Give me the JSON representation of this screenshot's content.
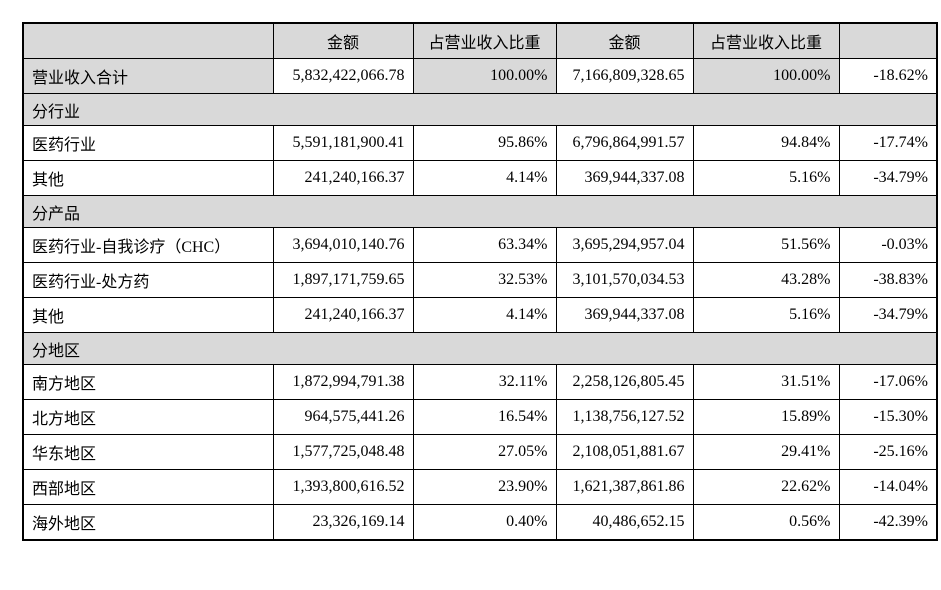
{
  "colors": {
    "shaded_bg": "#d9d9d9",
    "row_bg": "#ffffff",
    "border": "#000000",
    "text": "#000000"
  },
  "table": {
    "columns": [
      {
        "label": ""
      },
      {
        "label": "金额"
      },
      {
        "label": "占营业收入比重"
      },
      {
        "label": "金额"
      },
      {
        "label": "占营业收入比重"
      },
      {
        "label": ""
      }
    ],
    "rows": [
      {
        "kind": "data",
        "shaded": [
          1,
          0,
          1,
          0,
          1,
          0
        ],
        "cells": [
          "营业收入合计",
          "5,832,422,066.78",
          "100.00%",
          "7,166,809,328.65",
          "100.00%",
          "-18.62%"
        ]
      },
      {
        "kind": "section",
        "shaded": [
          1
        ],
        "cells": [
          "分行业"
        ]
      },
      {
        "kind": "data",
        "shaded": [
          0,
          0,
          0,
          0,
          0,
          0
        ],
        "cells": [
          "医药行业",
          "5,591,181,900.41",
          "95.86%",
          "6,796,864,991.57",
          "94.84%",
          "-17.74%"
        ]
      },
      {
        "kind": "data",
        "shaded": [
          0,
          0,
          0,
          0,
          0,
          0
        ],
        "cells": [
          "其他",
          "241,240,166.37",
          "4.14%",
          "369,944,337.08",
          "5.16%",
          "-34.79%"
        ]
      },
      {
        "kind": "section",
        "shaded": [
          1
        ],
        "cells": [
          "分产品"
        ]
      },
      {
        "kind": "data",
        "shaded": [
          0,
          0,
          0,
          0,
          0,
          0
        ],
        "cells": [
          "医药行业-自我诊疗（CHC）",
          "3,694,010,140.76",
          "63.34%",
          "3,695,294,957.04",
          "51.56%",
          "-0.03%"
        ]
      },
      {
        "kind": "data",
        "shaded": [
          0,
          0,
          0,
          0,
          0,
          0
        ],
        "cells": [
          "医药行业-处方药",
          "1,897,171,759.65",
          "32.53%",
          "3,101,570,034.53",
          "43.28%",
          "-38.83%"
        ]
      },
      {
        "kind": "data",
        "shaded": [
          0,
          0,
          0,
          0,
          0,
          0
        ],
        "cells": [
          "其他",
          "241,240,166.37",
          "4.14%",
          "369,944,337.08",
          "5.16%",
          "-34.79%"
        ]
      },
      {
        "kind": "section",
        "shaded": [
          1
        ],
        "cells": [
          "分地区"
        ]
      },
      {
        "kind": "data",
        "shaded": [
          0,
          0,
          0,
          0,
          0,
          0
        ],
        "cells": [
          "南方地区",
          "1,872,994,791.38",
          "32.11%",
          "2,258,126,805.45",
          "31.51%",
          "-17.06%"
        ]
      },
      {
        "kind": "data",
        "shaded": [
          0,
          0,
          0,
          0,
          0,
          0
        ],
        "cells": [
          "北方地区",
          "964,575,441.26",
          "16.54%",
          "1,138,756,127.52",
          "15.89%",
          "-15.30%"
        ]
      },
      {
        "kind": "data",
        "shaded": [
          0,
          0,
          0,
          0,
          0,
          0
        ],
        "cells": [
          "华东地区",
          "1,577,725,048.48",
          "27.05%",
          "2,108,051,881.67",
          "29.41%",
          "-25.16%"
        ]
      },
      {
        "kind": "data",
        "shaded": [
          0,
          0,
          0,
          0,
          0,
          0
        ],
        "cells": [
          "西部地区",
          "1,393,800,616.52",
          "23.90%",
          "1,621,387,861.86",
          "22.62%",
          "-14.04%"
        ]
      },
      {
        "kind": "data",
        "shaded": [
          0,
          0,
          0,
          0,
          0,
          0
        ],
        "cells": [
          "海外地区",
          "23,326,169.14",
          "0.40%",
          "40,486,652.15",
          "0.56%",
          "-42.39%"
        ]
      }
    ]
  }
}
